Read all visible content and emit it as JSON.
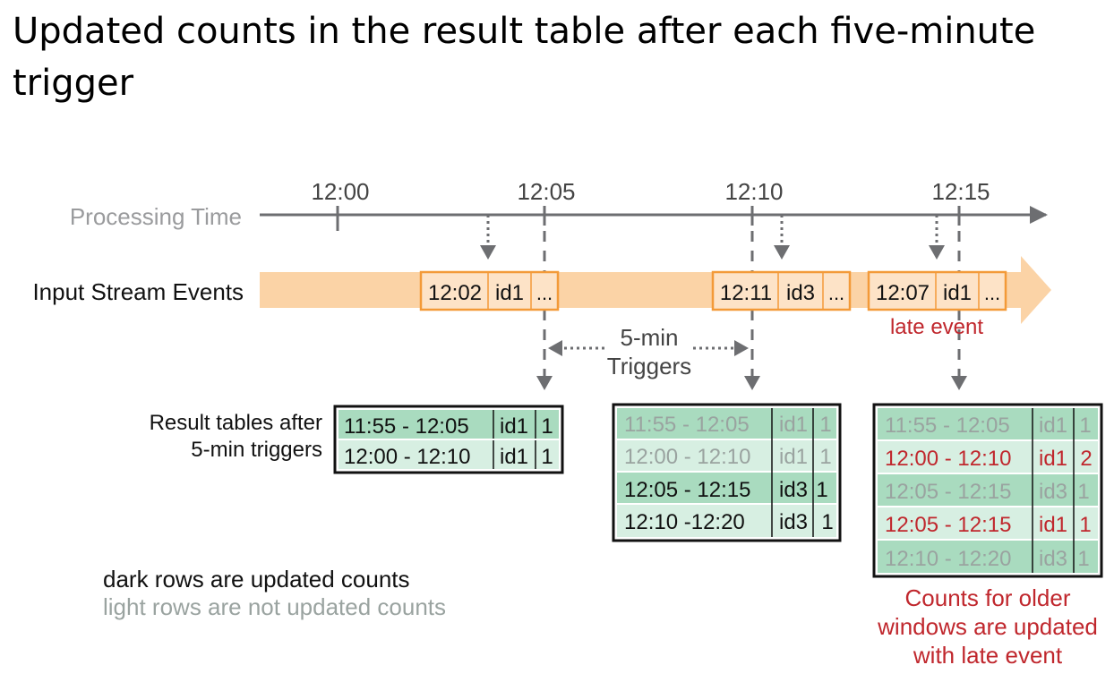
{
  "title": "Updated counts in the result table after each five-minute trigger",
  "axis": {
    "label": "Processing Time",
    "ticks": [
      "12:00",
      "12:05",
      "12:10",
      "12:15"
    ]
  },
  "stream": {
    "label": "Input Stream Events",
    "events": [
      {
        "time": "12:02",
        "id": "id1",
        "more": "..."
      },
      {
        "time": "12:11",
        "id": "id3",
        "more": "..."
      },
      {
        "time": "12:07",
        "id": "id1",
        "more": "..."
      }
    ],
    "late_label": "late event"
  },
  "trigger": {
    "line1": "5-min",
    "line2": "Triggers"
  },
  "result_label": {
    "line1": "Result tables after",
    "line2": "5-min triggers"
  },
  "tables": [
    {
      "rows": [
        {
          "window": "11:55 - 12:05",
          "id": "id1",
          "count": "1",
          "state": "updated"
        },
        {
          "window": "12:00 - 12:10",
          "id": "id1",
          "count": "1",
          "state": "updated"
        }
      ]
    },
    {
      "rows": [
        {
          "window": "11:55 - 12:05",
          "id": "id1",
          "count": "1",
          "state": "not-updated"
        },
        {
          "window": "12:00 - 12:10",
          "id": "id1",
          "count": "1",
          "state": "not-updated"
        },
        {
          "window": "12:05 - 12:15",
          "id": "id3",
          "count": "1",
          "state": "updated"
        },
        {
          "window": "12:10 -12:20",
          "id": "id3",
          "count": "1",
          "state": "updated"
        }
      ]
    },
    {
      "rows": [
        {
          "window": "11:55 - 12:05",
          "id": "id1",
          "count": "1",
          "state": "not-updated"
        },
        {
          "window": "12:00 - 12:10",
          "id": "id1",
          "count": "2",
          "state": "late-updated"
        },
        {
          "window": "12:05 - 12:15",
          "id": "id3",
          "count": "1",
          "state": "not-updated"
        },
        {
          "window": "12:05 - 12:15",
          "id": "id1",
          "count": "1",
          "state": "late-updated"
        },
        {
          "window": "12:10 - 12:20",
          "id": "id3",
          "count": "1",
          "state": "not-updated"
        }
      ]
    }
  ],
  "legend": {
    "dark": "dark rows are updated counts",
    "light": "light rows are not updated counts"
  },
  "note": {
    "line1": "Counts for older",
    "line2": "windows are updated",
    "line3": "with late event"
  },
  "colors": {
    "axis": "#6d6e71",
    "stream": "#fbd3a6",
    "event_fill": "#fde3c7",
    "event_border": "#f39a38",
    "dark_row": "#a9dbbf",
    "light_row": "#d7efe2",
    "faded_text": "#9aa3a0",
    "red": "#c0272d"
  }
}
